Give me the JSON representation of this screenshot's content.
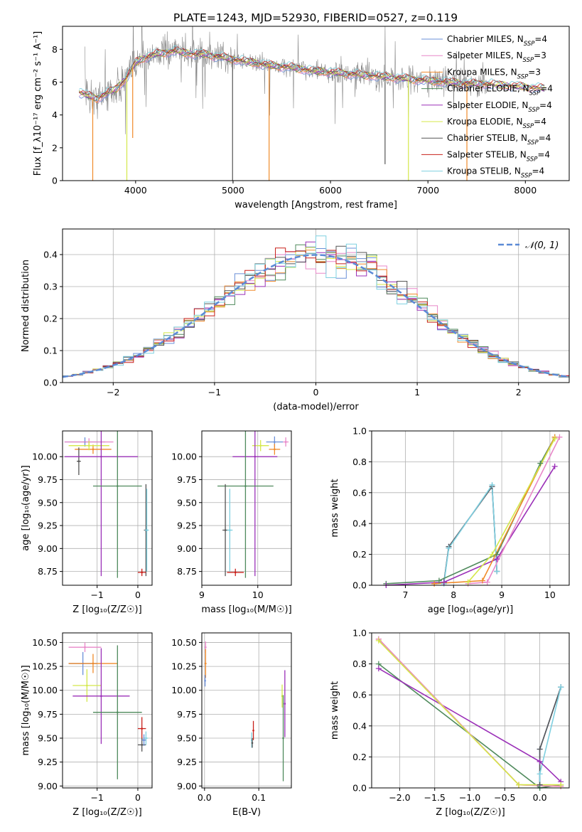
{
  "figure": {
    "title": "PLATE=1243, MJD=52930, FIBERID=0527, z=0.119"
  },
  "models": [
    {
      "name": "Chabrier MILES",
      "nssp": "4",
      "color": "#6a8fd8"
    },
    {
      "name": "Salpeter MILES",
      "nssp": "3",
      "color": "#e887c8"
    },
    {
      "name": "Kroupa MILES",
      "nssp": "3",
      "color": "#f08a2a"
    },
    {
      "name": "Chabrier ELODIE",
      "nssp": "4",
      "color": "#4f8a5c"
    },
    {
      "name": "Salpeter ELODIE",
      "nssp": "4",
      "color": "#9b30b8"
    },
    {
      "name": "Kroupa ELODIE",
      "nssp": "4",
      "color": "#d4e84a"
    },
    {
      "name": "Chabrier STELIB",
      "nssp": "4",
      "color": "#555555"
    },
    {
      "name": "Salpeter STELIB",
      "nssp": "4",
      "color": "#c8201a"
    },
    {
      "name": "Kroupa STELIB",
      "nssp": "4",
      "color": "#7fd0e0"
    }
  ],
  "chart_data": [
    {
      "id": "spectrum",
      "type": "line",
      "xlabel": "wavelength [Angstrom, rest frame]",
      "ylabel": "Flux [f_λ10⁻¹⁷ erg cm⁻² s⁻¹ A⁻¹]",
      "xlim": [
        3250,
        8450
      ],
      "ylim": [
        0,
        9.4
      ],
      "xticks": [
        4000,
        5000,
        6000,
        7000,
        8000
      ],
      "yticks": [
        0,
        2,
        4,
        6,
        8
      ],
      "grid": false,
      "legend": "top-right",
      "continuum": {
        "x": [
          3420,
          3500,
          3600,
          3700,
          3800,
          3900,
          4000,
          4100,
          4200,
          4300,
          4400,
          4500,
          4600,
          4700,
          4800,
          4900,
          5000,
          5200,
          5400,
          5600,
          5800,
          6000,
          6200,
          6400,
          6600,
          6800,
          7000,
          7200,
          7400,
          7600,
          7800,
          8000,
          8200
        ],
        "y": [
          5.4,
          5.2,
          5.0,
          5.3,
          5.6,
          6.2,
          7.2,
          7.5,
          7.7,
          7.8,
          7.9,
          7.8,
          7.7,
          7.7,
          7.6,
          7.5,
          7.4,
          7.2,
          7.0,
          6.9,
          6.7,
          6.6,
          6.5,
          6.4,
          6.3,
          6.2,
          6.1,
          6.0,
          5.9,
          5.9,
          5.8,
          5.7,
          5.6
        ]
      },
      "dips": [
        {
          "x": 3560,
          "y": 0,
          "color": "#f08a2a"
        },
        {
          "x": 3910,
          "y": 0,
          "color": "#d4e84a"
        },
        {
          "x": 3970,
          "y": 2.6,
          "color": "#f08a2a"
        },
        {
          "x": 4995,
          "y": 0,
          "color": "#555555"
        },
        {
          "x": 5370,
          "y": 0,
          "color": "#f08a2a"
        },
        {
          "x": 6560,
          "y": 1.0,
          "color": "#555555"
        },
        {
          "x": 6800,
          "y": 0,
          "color": "#d4e84a"
        },
        {
          "x": 7400,
          "y": 0,
          "color": "#f08a2a"
        }
      ]
    },
    {
      "id": "residuals",
      "type": "histogram",
      "xlabel": "(data-model)/error",
      "ylabel": "Normed distribution",
      "xlim": [
        -2.5,
        2.5
      ],
      "ylim": [
        0,
        0.48
      ],
      "xticks": [
        -2,
        -1,
        0,
        1,
        2
      ],
      "yticks": [
        0.0,
        0.1,
        0.2,
        0.3,
        0.4
      ],
      "grid": true,
      "legend": "top-right",
      "reference": {
        "name": "𝒩(0, 1)",
        "color": "#5b8ad6"
      },
      "bin_width": 0.1
    },
    {
      "id": "age-vs-Z",
      "type": "scatter",
      "xlabel": "Z [log₁₀(Z/Z☉)]",
      "ylabel": "age  [log₁₀(age/yr)]",
      "xlim": [
        -1.85,
        0.35
      ],
      "ylim": [
        8.6,
        10.28
      ],
      "xticks": [
        -1,
        0
      ],
      "yticks": [
        8.75,
        9.0,
        9.25,
        9.5,
        9.75,
        10.0
      ],
      "grid": true,
      "points": [
        {
          "model": 0,
          "x": -1.3,
          "xerr": 0.5,
          "y": 10.16,
          "yerr": 0.05
        },
        {
          "model": 1,
          "x": -1.2,
          "xerr": 0.6,
          "y": 10.16,
          "yerr": 0.04
        },
        {
          "model": 2,
          "x": -1.1,
          "xerr": 0.45,
          "y": 10.08,
          "yerr": 0.05
        },
        {
          "model": 5,
          "x": -1.2,
          "xerr": 0.5,
          "y": 10.12,
          "yerr": 0.05
        },
        {
          "model": 6,
          "x": -1.45,
          "xerr": 0.05,
          "y": 9.95,
          "yerr": 0.15
        },
        {
          "model": 4,
          "x": -0.9,
          "xerr": 0.9,
          "y": 10.0,
          "yerr": 1.3
        },
        {
          "model": 3,
          "x": -0.5,
          "xerr": 0.6,
          "y": 9.68,
          "yerr": 1.0
        },
        {
          "model": 6,
          "x": 0.2,
          "xerr": 0.05,
          "y": 9.2,
          "yerr": 0.5
        },
        {
          "model": 8,
          "x": 0.22,
          "xerr": 0.05,
          "y": 9.2,
          "yerr": 0.45
        },
        {
          "model": 7,
          "x": 0.1,
          "xerr": 0.1,
          "y": 8.74,
          "yerr": 0.04
        }
      ]
    },
    {
      "id": "age-vs-mass",
      "type": "scatter",
      "xlabel": "mass [log₁₀(M/M☉)]",
      "ylabel": "",
      "xlim": [
        9.0,
        10.6
      ],
      "ylim": [
        8.6,
        10.28
      ],
      "xticks": [
        9,
        10
      ],
      "yticks": [
        8.75,
        9.0,
        9.25,
        9.5,
        9.75,
        10.0
      ],
      "grid": true,
      "points": [
        {
          "model": 1,
          "x": 10.5,
          "xerr": 0.05,
          "y": 10.16,
          "yerr": 0.05
        },
        {
          "model": 0,
          "x": 10.3,
          "xerr": 0.15,
          "y": 10.16,
          "yerr": 0.06
        },
        {
          "model": 2,
          "x": 10.3,
          "xerr": 0.1,
          "y": 10.08,
          "yerr": 0.06
        },
        {
          "model": 5,
          "x": 10.05,
          "xerr": 0.15,
          "y": 10.12,
          "yerr": 0.06
        },
        {
          "model": 4,
          "x": 9.95,
          "xerr": 0.4,
          "y": 10.0,
          "yerr": 1.3
        },
        {
          "model": 3,
          "x": 9.78,
          "xerr": 0.5,
          "y": 9.68,
          "yerr": 1.0
        },
        {
          "model": 6,
          "x": 9.42,
          "xerr": 0.05,
          "y": 9.2,
          "yerr": 0.5
        },
        {
          "model": 8,
          "x": 9.5,
          "xerr": 0.05,
          "y": 9.2,
          "yerr": 0.45
        },
        {
          "model": 7,
          "x": 9.6,
          "xerr": 0.15,
          "y": 8.74,
          "yerr": 0.04
        }
      ]
    },
    {
      "id": "massweight-vs-age",
      "type": "line",
      "xlabel": "age  [log₁₀(age/yr)]",
      "ylabel": "mass weight",
      "xlim": [
        6.3,
        10.4
      ],
      "ylim": [
        0,
        1.0
      ],
      "xticks": [
        7,
        8,
        9,
        10
      ],
      "yticks": [
        0.0,
        0.2,
        0.4,
        0.6,
        0.8,
        1.0
      ],
      "grid": true,
      "series": [
        {
          "model": 0,
          "x": [
            7.8,
            7.9,
            8.8,
            8.9
          ],
          "y": [
            0.02,
            0.25,
            0.64,
            0.09
          ]
        },
        {
          "model": 6,
          "x": [
            7.8,
            7.9,
            8.8,
            8.9
          ],
          "y": [
            0.02,
            0.25,
            0.64,
            0.09
          ]
        },
        {
          "model": 8,
          "x": [
            7.8,
            7.9,
            8.8,
            8.9
          ],
          "y": [
            0.01,
            0.24,
            0.65,
            0.09
          ]
        },
        {
          "model": 3,
          "x": [
            6.6,
            7.7,
            8.9,
            9.8,
            10.1
          ],
          "y": [
            0.01,
            0.03,
            0.2,
            0.79,
            0.96
          ]
        },
        {
          "model": 4,
          "x": [
            6.6,
            7.8,
            8.9,
            10.1
          ],
          "y": [
            0.0,
            0.02,
            0.17,
            0.77
          ]
        },
        {
          "model": 2,
          "x": [
            7.6,
            8.6,
            10.1
          ],
          "y": [
            0.01,
            0.03,
            0.96
          ]
        },
        {
          "model": 1,
          "x": [
            8.3,
            8.7,
            10.2
          ],
          "y": [
            0.01,
            0.02,
            0.96
          ]
        },
        {
          "model": 5,
          "x": [
            8.3,
            8.8,
            10.1
          ],
          "y": [
            0.02,
            0.2,
            0.95
          ]
        }
      ]
    },
    {
      "id": "mass-vs-Z",
      "type": "scatter",
      "xlabel": "Z [log₁₀(Z/Z☉)]",
      "ylabel": "mass [log₁₀(M/M☉)]",
      "xlim": [
        -1.85,
        0.35
      ],
      "ylim": [
        8.98,
        10.6
      ],
      "xticks": [
        -1,
        0
      ],
      "yticks": [
        9.0,
        9.25,
        9.5,
        9.75,
        10.0,
        10.25,
        10.5
      ],
      "grid": true,
      "points": [
        {
          "model": 1,
          "x": -1.3,
          "xerr": 0.4,
          "y": 10.45,
          "yerr": 0.05
        },
        {
          "model": 0,
          "x": -1.35,
          "xerr": 0.35,
          "y": 10.28,
          "yerr": 0.12
        },
        {
          "model": 2,
          "x": -1.1,
          "xerr": 0.6,
          "y": 10.28,
          "yerr": 0.1
        },
        {
          "model": 5,
          "x": -1.25,
          "xerr": 0.35,
          "y": 10.05,
          "yerr": 0.17
        },
        {
          "model": 4,
          "x": -0.9,
          "xerr": 0.7,
          "y": 9.94,
          "yerr": 0.5
        },
        {
          "model": 3,
          "x": -0.5,
          "xerr": 0.6,
          "y": 9.77,
          "yerr": 0.7
        },
        {
          "model": 7,
          "x": 0.1,
          "xerr": 0.1,
          "y": 9.6,
          "yerr": 0.12
        },
        {
          "model": 6,
          "x": 0.1,
          "xerr": 0.1,
          "y": 9.43,
          "yerr": 0.07
        },
        {
          "model": 8,
          "x": 0.2,
          "xerr": 0.05,
          "y": 9.5,
          "yerr": 0.07
        },
        {
          "model": 0,
          "x": 0.15,
          "xerr": 0.05,
          "y": 9.48,
          "yerr": 0.06
        }
      ]
    },
    {
      "id": "mass-vs-ebv",
      "type": "scatter",
      "xlabel": "E(B-V)",
      "ylabel": "",
      "xlim": [
        -0.005,
        0.16
      ],
      "ylim": [
        8.98,
        10.6
      ],
      "xticks": [
        0.0,
        0.1
      ],
      "yticks": [
        9.0,
        9.25,
        9.5,
        9.75,
        10.0,
        10.25,
        10.5
      ],
      "grid": true,
      "points": [
        {
          "model": 1,
          "x": 0.002,
          "xerr": 0,
          "y": 10.45,
          "yerr": 0.06
        },
        {
          "model": 2,
          "x": 0.002,
          "xerr": 0,
          "y": 10.28,
          "yerr": 0.15
        },
        {
          "model": 0,
          "x": 0.001,
          "xerr": 0,
          "y": 10.1,
          "yerr": 0.06
        },
        {
          "model": 7,
          "x": 0.09,
          "xerr": 0,
          "y": 9.58,
          "yerr": 0.1
        },
        {
          "model": 8,
          "x": 0.087,
          "xerr": 0,
          "y": 9.48,
          "yerr": 0.08
        },
        {
          "model": 6,
          "x": 0.088,
          "xerr": 0,
          "y": 9.45,
          "yerr": 0.05
        },
        {
          "model": 5,
          "x": 0.143,
          "xerr": 0,
          "y": 9.94,
          "yerr": 0.12
        },
        {
          "model": 3,
          "x": 0.145,
          "xerr": 0,
          "y": 9.5,
          "yerr": 0.45
        },
        {
          "model": 4,
          "x": 0.148,
          "xerr": 0,
          "y": 9.86,
          "yerr": 0.35
        }
      ]
    },
    {
      "id": "massweight-vs-Z",
      "type": "line",
      "xlabel": "Z [log₁₀(Z/Z☉)]",
      "ylabel": "mass weight",
      "xlim": [
        -2.4,
        0.42
      ],
      "ylim": [
        0,
        1.0
      ],
      "xticks": [
        -2.0,
        -1.5,
        -1.0,
        -0.5,
        0.0
      ],
      "yticks": [
        0.0,
        0.2,
        0.4,
        0.6,
        0.8,
        1.0
      ],
      "grid": true,
      "series": [
        {
          "model": 0,
          "x": [
            0.0,
            0.0,
            0.3
          ],
          "y": [
            0.02,
            0.25,
            0.65
          ]
        },
        {
          "model": 6,
          "x": [
            0.0,
            0.0,
            0.3
          ],
          "y": [
            0.02,
            0.25,
            0.65
          ]
        },
        {
          "model": 8,
          "x": [
            0.0,
            0.0,
            0.3
          ],
          "y": [
            0.0,
            0.09,
            0.65
          ]
        },
        {
          "model": 3,
          "x": [
            -2.3,
            0.0,
            0.3
          ],
          "y": [
            0.8,
            0.0,
            0.02
          ]
        },
        {
          "model": 4,
          "x": [
            -2.3,
            0.0,
            0.3
          ],
          "y": [
            0.77,
            0.17,
            0.04
          ]
        },
        {
          "model": 2,
          "x": [
            -2.3,
            -0.3,
            0.3
          ],
          "y": [
            0.96,
            0.02,
            0.01
          ]
        },
        {
          "model": 1,
          "x": [
            -2.3,
            -0.3,
            0.3
          ],
          "y": [
            0.96,
            0.02,
            0.01
          ]
        },
        {
          "model": 5,
          "x": [
            -2.3,
            -0.3,
            0.3
          ],
          "y": [
            0.95,
            0.02,
            0.02
          ]
        }
      ]
    }
  ]
}
